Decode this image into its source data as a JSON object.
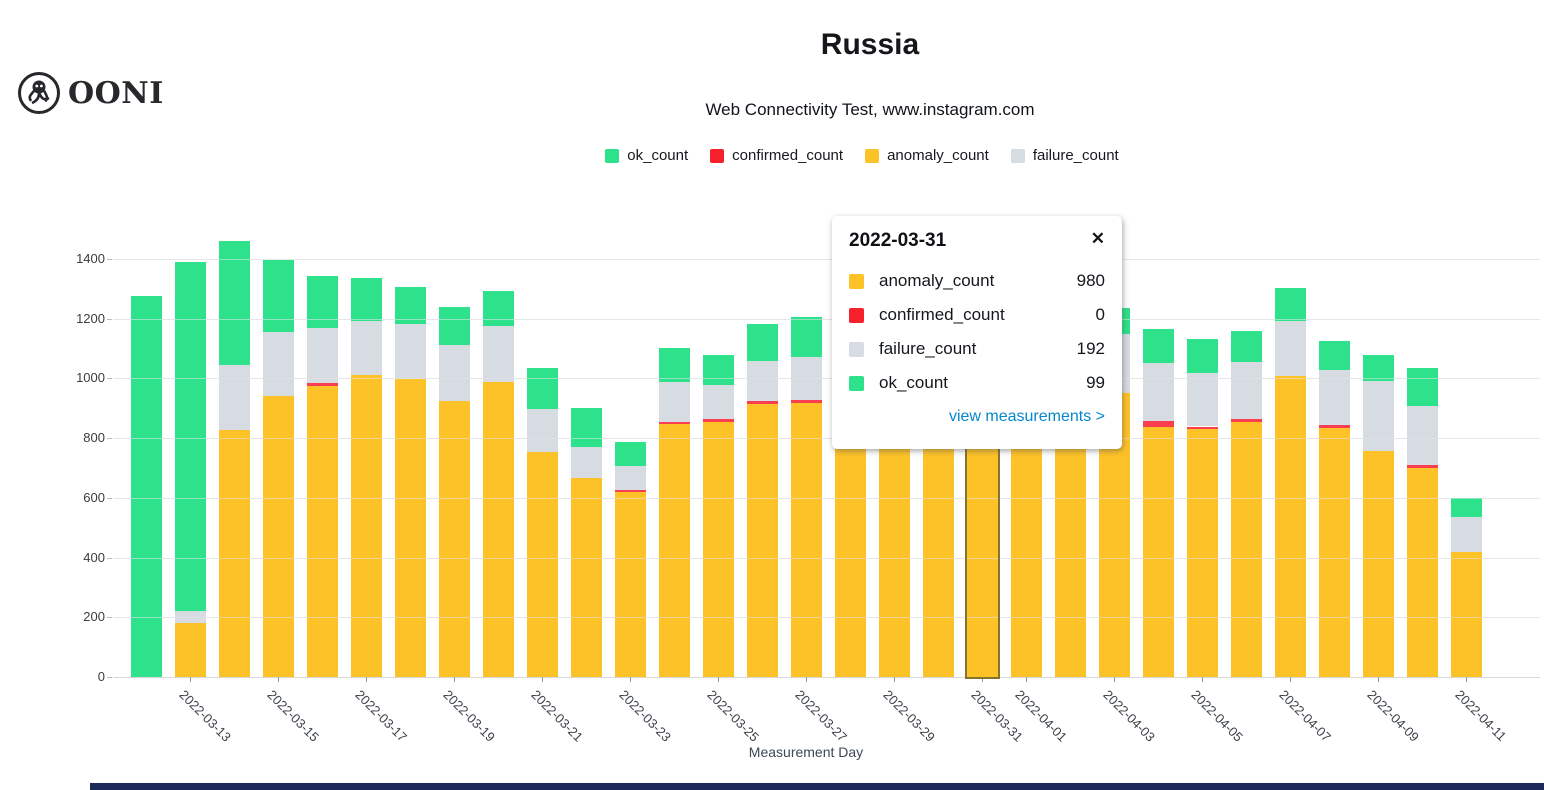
{
  "header": {
    "brand": "OONI",
    "title": "Russia",
    "subtitle": "Web Connectivity Test, www.instagram.com"
  },
  "legend": [
    {
      "label": "ok_count",
      "color": "#2de28a"
    },
    {
      "label": "confirmed_count",
      "color": "#f6212d"
    },
    {
      "label": "anomaly_count",
      "color": "#fdc228"
    },
    {
      "label": "failure_count",
      "color": "#d7dbe2"
    }
  ],
  "tooltip": {
    "date": "2022-03-31",
    "close_label": "✕",
    "rows": [
      {
        "label": "anomaly_count",
        "value": "980",
        "color": "#fdc228"
      },
      {
        "label": "confirmed_count",
        "value": "0",
        "color": "#f6212d"
      },
      {
        "label": "failure_count",
        "value": "192",
        "color": "#d7dbe2"
      },
      {
        "label": "ok_count",
        "value": "99",
        "color": "#2de28a"
      }
    ],
    "link": "view measurements >"
  },
  "chart_data": {
    "type": "bar",
    "stacked": true,
    "title": "Russia",
    "xlabel": "Measurement Day",
    "ylabel": "",
    "ylim": [
      0,
      1400
    ],
    "yticks": [
      0,
      200,
      400,
      600,
      800,
      1000,
      1200,
      1400
    ],
    "grid": true,
    "legend_position": "top",
    "categories": [
      "2022-03-12",
      "2022-03-13",
      "2022-03-14",
      "2022-03-15",
      "2022-03-16",
      "2022-03-17",
      "2022-03-18",
      "2022-03-19",
      "2022-03-20",
      "2022-03-21",
      "2022-03-22",
      "2022-03-23",
      "2022-03-24",
      "2022-03-25",
      "2022-03-26",
      "2022-03-27",
      "2022-03-28",
      "2022-03-29",
      "2022-03-30",
      "2022-03-31",
      "2022-04-01",
      "2022-04-02",
      "2022-04-03",
      "2022-04-04",
      "2022-04-05",
      "2022-04-06",
      "2022-04-07",
      "2022-04-08",
      "2022-04-09",
      "2022-04-10",
      "2022-04-11"
    ],
    "tick_indices": [
      1,
      3,
      5,
      7,
      9,
      11,
      13,
      15,
      17,
      19,
      20,
      22,
      24,
      26,
      28,
      30
    ],
    "selected_category": "2022-03-31",
    "series_order": [
      "anomaly_count",
      "confirmed_count",
      "failure_count",
      "ok_count"
    ],
    "series": [
      {
        "name": "anomaly_count",
        "color": "#fdc228",
        "values": [
          0,
          180,
          827,
          941,
          973,
          1010,
          998,
          926,
          988,
          753,
          668,
          620,
          846,
          853,
          915,
          918,
          925,
          950,
          960,
          980,
          945,
          935,
          950,
          836,
          831,
          855,
          1009,
          833,
          757,
          699,
          420
        ]
      },
      {
        "name": "confirmed_count",
        "color": "#fb3e50",
        "values": [
          0,
          0,
          0,
          0,
          12,
          0,
          0,
          0,
          0,
          0,
          0,
          6,
          8,
          11,
          11,
          10,
          8,
          0,
          0,
          0,
          0,
          0,
          0,
          20,
          8,
          8,
          0,
          10,
          0,
          11,
          0
        ]
      },
      {
        "name": "failure_count",
        "color": "#d7dbe2",
        "values": [
          0,
          42,
          218,
          214,
          185,
          183,
          185,
          185,
          189,
          144,
          104,
          80,
          133,
          113,
          131,
          145,
          160,
          175,
          180,
          192,
          180,
          185,
          200,
          195,
          178,
          191,
          183,
          186,
          233,
          198,
          117
        ]
      },
      {
        "name": "ok_count",
        "color": "#2de28a",
        "values": [
          1276,
          1168,
          415,
          241,
          172,
          142,
          124,
          128,
          115,
          138,
          129,
          81,
          116,
          100,
          126,
          134,
          120,
          110,
          105,
          99,
          100,
          105,
          85,
          113,
          116,
          105,
          112,
          95,
          87,
          127,
          64
        ]
      }
    ]
  }
}
